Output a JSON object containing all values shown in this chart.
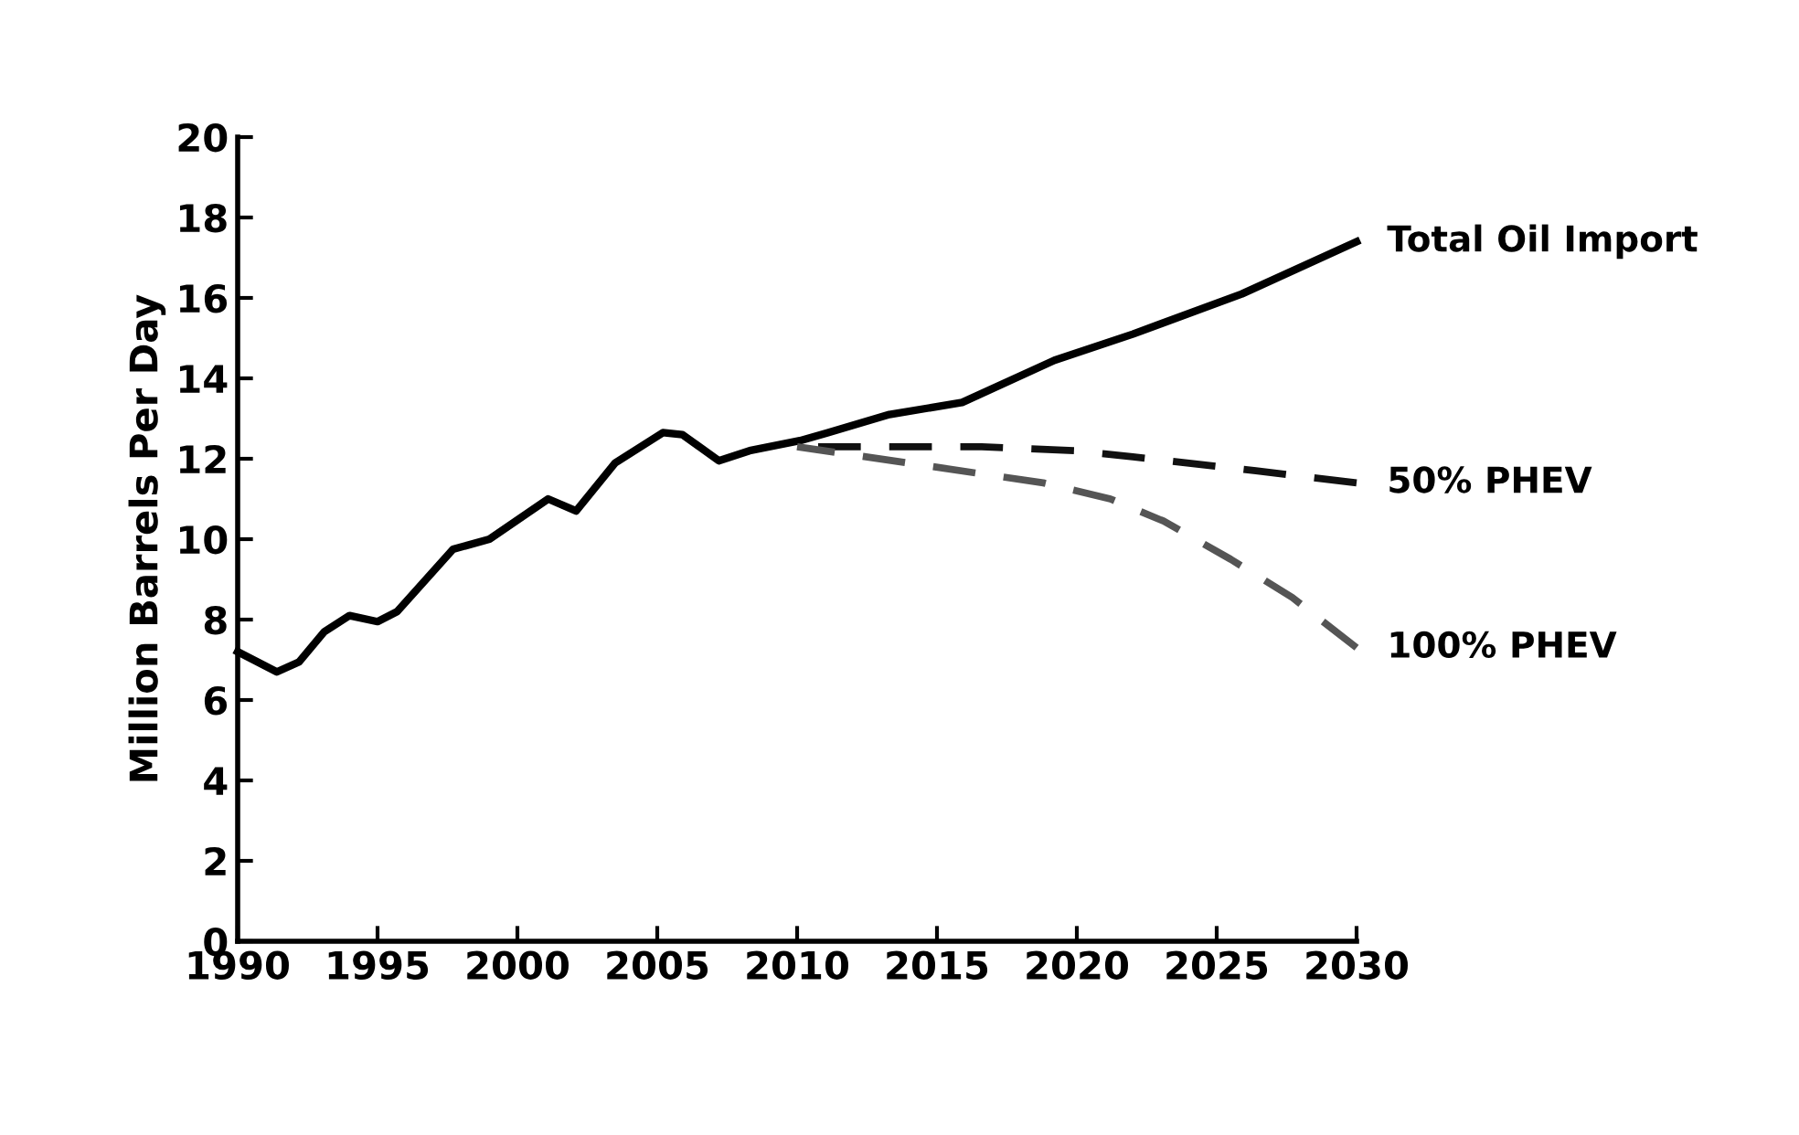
{
  "chart_data": {
    "type": "line",
    "ylabel": "Million Barrels Per Day",
    "xlim": [
      1990,
      2030
    ],
    "xticks": [
      1990,
      1995,
      2000,
      2005,
      2010,
      2015,
      2020,
      2025,
      2030
    ],
    "ylim": [
      0,
      20
    ],
    "yticks": [
      0,
      2,
      4,
      6,
      8,
      10,
      12,
      14,
      16,
      18,
      20
    ],
    "grid": false,
    "legend": false,
    "marker": "none",
    "series": [
      {
        "name": "Total Oil Import",
        "color": "#000000",
        "line_style": "solid",
        "x": [
          1990,
          1991.4,
          1992.2,
          1993.1,
          1994.0,
          1995.0,
          1995.7,
          1997.7,
          1999.0,
          2001.1,
          2002.1,
          2003.5,
          2005.2,
          2005.9,
          2007.2,
          2008.3,
          2010.1,
          2011.1,
          2013.3,
          2015.9,
          2019.2,
          2022.0,
          2025.9,
          2030
        ],
        "values": [
          7.2,
          6.7,
          6.95,
          7.7,
          8.1,
          7.95,
          8.2,
          9.75,
          10.0,
          11.0,
          10.7,
          11.9,
          12.65,
          12.6,
          11.95,
          12.2,
          12.45,
          12.65,
          13.1,
          13.4,
          14.45,
          15.1,
          16.1,
          17.4
        ]
      },
      {
        "name": "50% PHEV",
        "color": "#111111",
        "line_style": "dashed",
        "x": [
          2010,
          2016.6,
          2019.9,
          2022.0,
          2026.4,
          2030
        ],
        "values": [
          12.3,
          12.3,
          12.2,
          12.05,
          11.7,
          11.4
        ]
      },
      {
        "name": "100% PHEV",
        "color": "#555555",
        "line_style": "dashed",
        "x": [
          2010,
          2014.4,
          2018.8,
          2021.2,
          2023.1,
          2025.5,
          2027.7,
          2030
        ],
        "values": [
          12.3,
          11.85,
          11.4,
          11.0,
          10.45,
          9.5,
          8.55,
          7.3
        ]
      }
    ]
  }
}
